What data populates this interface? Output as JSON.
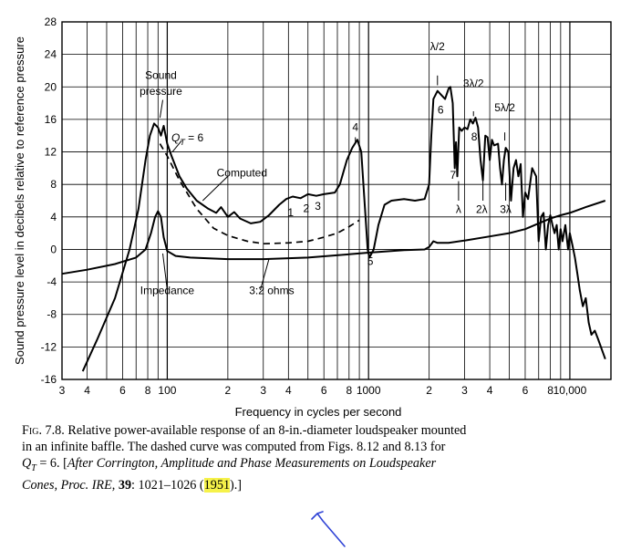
{
  "chart_data": {
    "type": "line",
    "xscale": "log",
    "xlim": [
      30,
      16000
    ],
    "ylim": [
      -16,
      28
    ],
    "xlabel": "Frequency in cycles per second",
    "ylabel": "Sound pressure level in decibels relative to reference pressure",
    "grid": true,
    "x_tick_labels": [
      {
        "x": 30,
        "label": "3"
      },
      {
        "x": 40,
        "label": "4"
      },
      {
        "x": 60,
        "label": "6"
      },
      {
        "x": 80,
        "label": "8"
      },
      {
        "x": 100,
        "label": "100"
      },
      {
        "x": 200,
        "label": "2"
      },
      {
        "x": 300,
        "label": "3"
      },
      {
        "x": 400,
        "label": "4"
      },
      {
        "x": 600,
        "label": "6"
      },
      {
        "x": 800,
        "label": "8"
      },
      {
        "x": 1000,
        "label": "1000"
      },
      {
        "x": 2000,
        "label": "2"
      },
      {
        "x": 3000,
        "label": "3"
      },
      {
        "x": 4000,
        "label": "4"
      },
      {
        "x": 6000,
        "label": "6"
      },
      {
        "x": 8000,
        "label": "8"
      },
      {
        "x": 10000,
        "label": "10,000"
      }
    ],
    "y_ticks": [
      28,
      24,
      20,
      16,
      12,
      8,
      4,
      0,
      -4,
      -8,
      -12,
      -16
    ],
    "y_tick_labels": [
      "28",
      "24",
      "20",
      "16",
      "12",
      "8",
      "4",
      "0",
      "-4",
      "-8",
      "-12",
      "-16"
    ],
    "series": [
      {
        "name": "Sound pressure",
        "style": "solid",
        "points": [
          [
            38,
            -15
          ],
          [
            45,
            -11
          ],
          [
            55,
            -6
          ],
          [
            65,
            0
          ],
          [
            72,
            5
          ],
          [
            78,
            11
          ],
          [
            82,
            14
          ],
          [
            86,
            15.5
          ],
          [
            90,
            15
          ],
          [
            93,
            14
          ],
          [
            96,
            15.2
          ],
          [
            100,
            13
          ],
          [
            105,
            11.5
          ],
          [
            115,
            9
          ],
          [
            125,
            7.5
          ],
          [
            140,
            6
          ],
          [
            160,
            5
          ],
          [
            175,
            4.5
          ],
          [
            185,
            5.2
          ],
          [
            200,
            4
          ],
          [
            215,
            4.6
          ],
          [
            230,
            3.8
          ],
          [
            260,
            3.2
          ],
          [
            290,
            3.4
          ],
          [
            320,
            4.2
          ],
          [
            360,
            5.5
          ],
          [
            390,
            6.2
          ],
          [
            420,
            6.5
          ],
          [
            460,
            6.3
          ],
          [
            500,
            6.8
          ],
          [
            550,
            6.6
          ],
          [
            600,
            6.8
          ],
          [
            680,
            7
          ],
          [
            720,
            8
          ],
          [
            780,
            11
          ],
          [
            830,
            12.5
          ],
          [
            880,
            13.5
          ],
          [
            920,
            12
          ],
          [
            960,
            5
          ],
          [
            990,
            0
          ],
          [
            1010,
            -1
          ],
          [
            1060,
            0
          ],
          [
            1120,
            3
          ],
          [
            1200,
            5.5
          ],
          [
            1300,
            6
          ],
          [
            1500,
            6.2
          ],
          [
            1700,
            6
          ],
          [
            1900,
            6.2
          ],
          [
            2000,
            8
          ],
          [
            2050,
            14
          ],
          [
            2100,
            18.5
          ],
          [
            2200,
            19.5
          ],
          [
            2300,
            19
          ],
          [
            2400,
            18.5
          ],
          [
            2500,
            19.8
          ],
          [
            2550,
            20
          ],
          [
            2620,
            18
          ],
          [
            2680,
            10
          ],
          [
            2720,
            13.2
          ],
          [
            2760,
            9
          ],
          [
            2820,
            15
          ],
          [
            2900,
            14.6
          ],
          [
            3000,
            15
          ],
          [
            3100,
            14.8
          ],
          [
            3200,
            16
          ],
          [
            3300,
            15.5
          ],
          [
            3400,
            16.2
          ],
          [
            3500,
            15
          ],
          [
            3600,
            11
          ],
          [
            3700,
            8.5
          ],
          [
            3800,
            14
          ],
          [
            3900,
            13.8
          ],
          [
            4000,
            11
          ],
          [
            4100,
            13.5
          ],
          [
            4200,
            12.8
          ],
          [
            4400,
            13
          ],
          [
            4500,
            10
          ],
          [
            4600,
            8
          ],
          [
            4700,
            11
          ],
          [
            4800,
            12.5
          ],
          [
            4950,
            12
          ],
          [
            5100,
            6
          ],
          [
            5250,
            10
          ],
          [
            5400,
            11
          ],
          [
            5550,
            9
          ],
          [
            5700,
            10.5
          ],
          [
            5850,
            4
          ],
          [
            6000,
            7
          ],
          [
            6200,
            6.2
          ],
          [
            6500,
            10
          ],
          [
            6800,
            9
          ],
          [
            7000,
            1
          ],
          [
            7200,
            4
          ],
          [
            7400,
            4.5
          ],
          [
            7600,
            0
          ],
          [
            7800,
            3
          ],
          [
            8000,
            4.2
          ],
          [
            8200,
            3
          ],
          [
            8400,
            2
          ],
          [
            8600,
            3
          ],
          [
            8800,
            0
          ],
          [
            9000,
            2.5
          ],
          [
            9200,
            1
          ],
          [
            9500,
            3
          ],
          [
            9800,
            0
          ],
          [
            10000,
            2
          ],
          [
            10300,
            0.5
          ],
          [
            10600,
            -1
          ],
          [
            10900,
            -3
          ],
          [
            11200,
            -5
          ],
          [
            11600,
            -7
          ],
          [
            12000,
            -6
          ],
          [
            12400,
            -9
          ],
          [
            12800,
            -10.5
          ],
          [
            13300,
            -10
          ],
          [
            13800,
            -11
          ],
          [
            14500,
            -12.5
          ],
          [
            15000,
            -13.5
          ]
        ]
      },
      {
        "name": "Computed",
        "style": "dashed",
        "points": [
          [
            92,
            13
          ],
          [
            100,
            11.5
          ],
          [
            115,
            8.5
          ],
          [
            140,
            5
          ],
          [
            170,
            2.6
          ],
          [
            200,
            1.7
          ],
          [
            250,
            1
          ],
          [
            300,
            0.7
          ],
          [
            400,
            0.8
          ],
          [
            500,
            1
          ],
          [
            600,
            1.5
          ],
          [
            700,
            2
          ],
          [
            800,
            2.8
          ],
          [
            900,
            3.6
          ]
        ]
      },
      {
        "name": "Impedance",
        "style": "solid",
        "points": [
          [
            30,
            -3
          ],
          [
            40,
            -2.5
          ],
          [
            55,
            -1.8
          ],
          [
            70,
            -1
          ],
          [
            78,
            0
          ],
          [
            83,
            2
          ],
          [
            87,
            4
          ],
          [
            90,
            4.7
          ],
          [
            93,
            4
          ],
          [
            96,
            1.5
          ],
          [
            100,
            -0.2
          ],
          [
            110,
            -0.8
          ],
          [
            130,
            -1
          ],
          [
            200,
            -1.2
          ],
          [
            300,
            -1.2
          ],
          [
            500,
            -1
          ],
          [
            800,
            -0.6
          ],
          [
            1000,
            -0.4
          ],
          [
            1500,
            -0.1
          ],
          [
            1900,
            0
          ],
          [
            2000,
            0.3
          ],
          [
            2100,
            1
          ],
          [
            2200,
            0.8
          ],
          [
            2500,
            0.8
          ],
          [
            3000,
            1.1
          ],
          [
            4000,
            1.6
          ],
          [
            5000,
            2
          ],
          [
            6000,
            2.5
          ],
          [
            7000,
            3.2
          ],
          [
            8000,
            3.8
          ],
          [
            9000,
            4.2
          ],
          [
            10000,
            4.5
          ],
          [
            12000,
            5.2
          ],
          [
            15000,
            6
          ]
        ]
      }
    ],
    "annotations": [
      {
        "text": "Sound",
        "x": 93,
        "y": 21
      },
      {
        "text": "pressure",
        "x": 93,
        "y": 19
      },
      {
        "text": "Q",
        "sub": "T",
        "suffix": " = 6",
        "x": 126,
        "y": 13.3
      },
      {
        "text": "Computed",
        "x": 235,
        "y": 9
      },
      {
        "text": "Impedance",
        "x": 100,
        "y": -5.5
      },
      {
        "text": "3:2 ohms",
        "x": 330,
        "y": -5.5
      },
      {
        "text": "1",
        "x": 410,
        "y": 4.1
      },
      {
        "text": "2",
        "x": 490,
        "y": 4.6
      },
      {
        "text": "3",
        "x": 560,
        "y": 4.9
      },
      {
        "text": "4",
        "x": 860,
        "y": 14.6
      },
      {
        "text": "5",
        "x": 1020,
        "y": -1.9
      },
      {
        "text": "6",
        "x": 2280,
        "y": 16.7
      },
      {
        "text": "7",
        "x": 2630,
        "y": 8.7
      },
      {
        "text": "8",
        "x": 3350,
        "y": 13.4
      },
      {
        "text": "λ/2",
        "x": 2200,
        "y": 24.5
      },
      {
        "text": "3λ/2",
        "x": 3320,
        "y": 20
      },
      {
        "text": "5λ/2",
        "x": 4750,
        "y": 17
      },
      {
        "text": "λ",
        "x": 2800,
        "y": 4.5
      },
      {
        "text": "2λ",
        "x": 3650,
        "y": 4.5
      },
      {
        "text": "3λ",
        "x": 4800,
        "y": 4.5
      }
    ]
  },
  "caption": {
    "fig_label": "Fig. 7.8.",
    "line1": " Relative power-available response of an 8-in.-diameter loudspeaker mounted",
    "line2": "in an infinite baffle.  The dashed curve was computed from Figs. 8.12 and 8.13 for",
    "qt_text": "Q",
    "qt_sub": "T",
    "qt_rest": " = 6.  [",
    "italic_part": "After Corrington, Amplitude and Phase Measurements on Loudspeaker",
    "italic_part2": "Cones, Proc. IRE,",
    "volume": "39",
    "pages": ": 1021–1026 (",
    "year": "1951",
    "end": ").]"
  },
  "colors": {
    "ink": "#000000",
    "highlight": "#f6f24a",
    "pen": "#2f43d6"
  }
}
